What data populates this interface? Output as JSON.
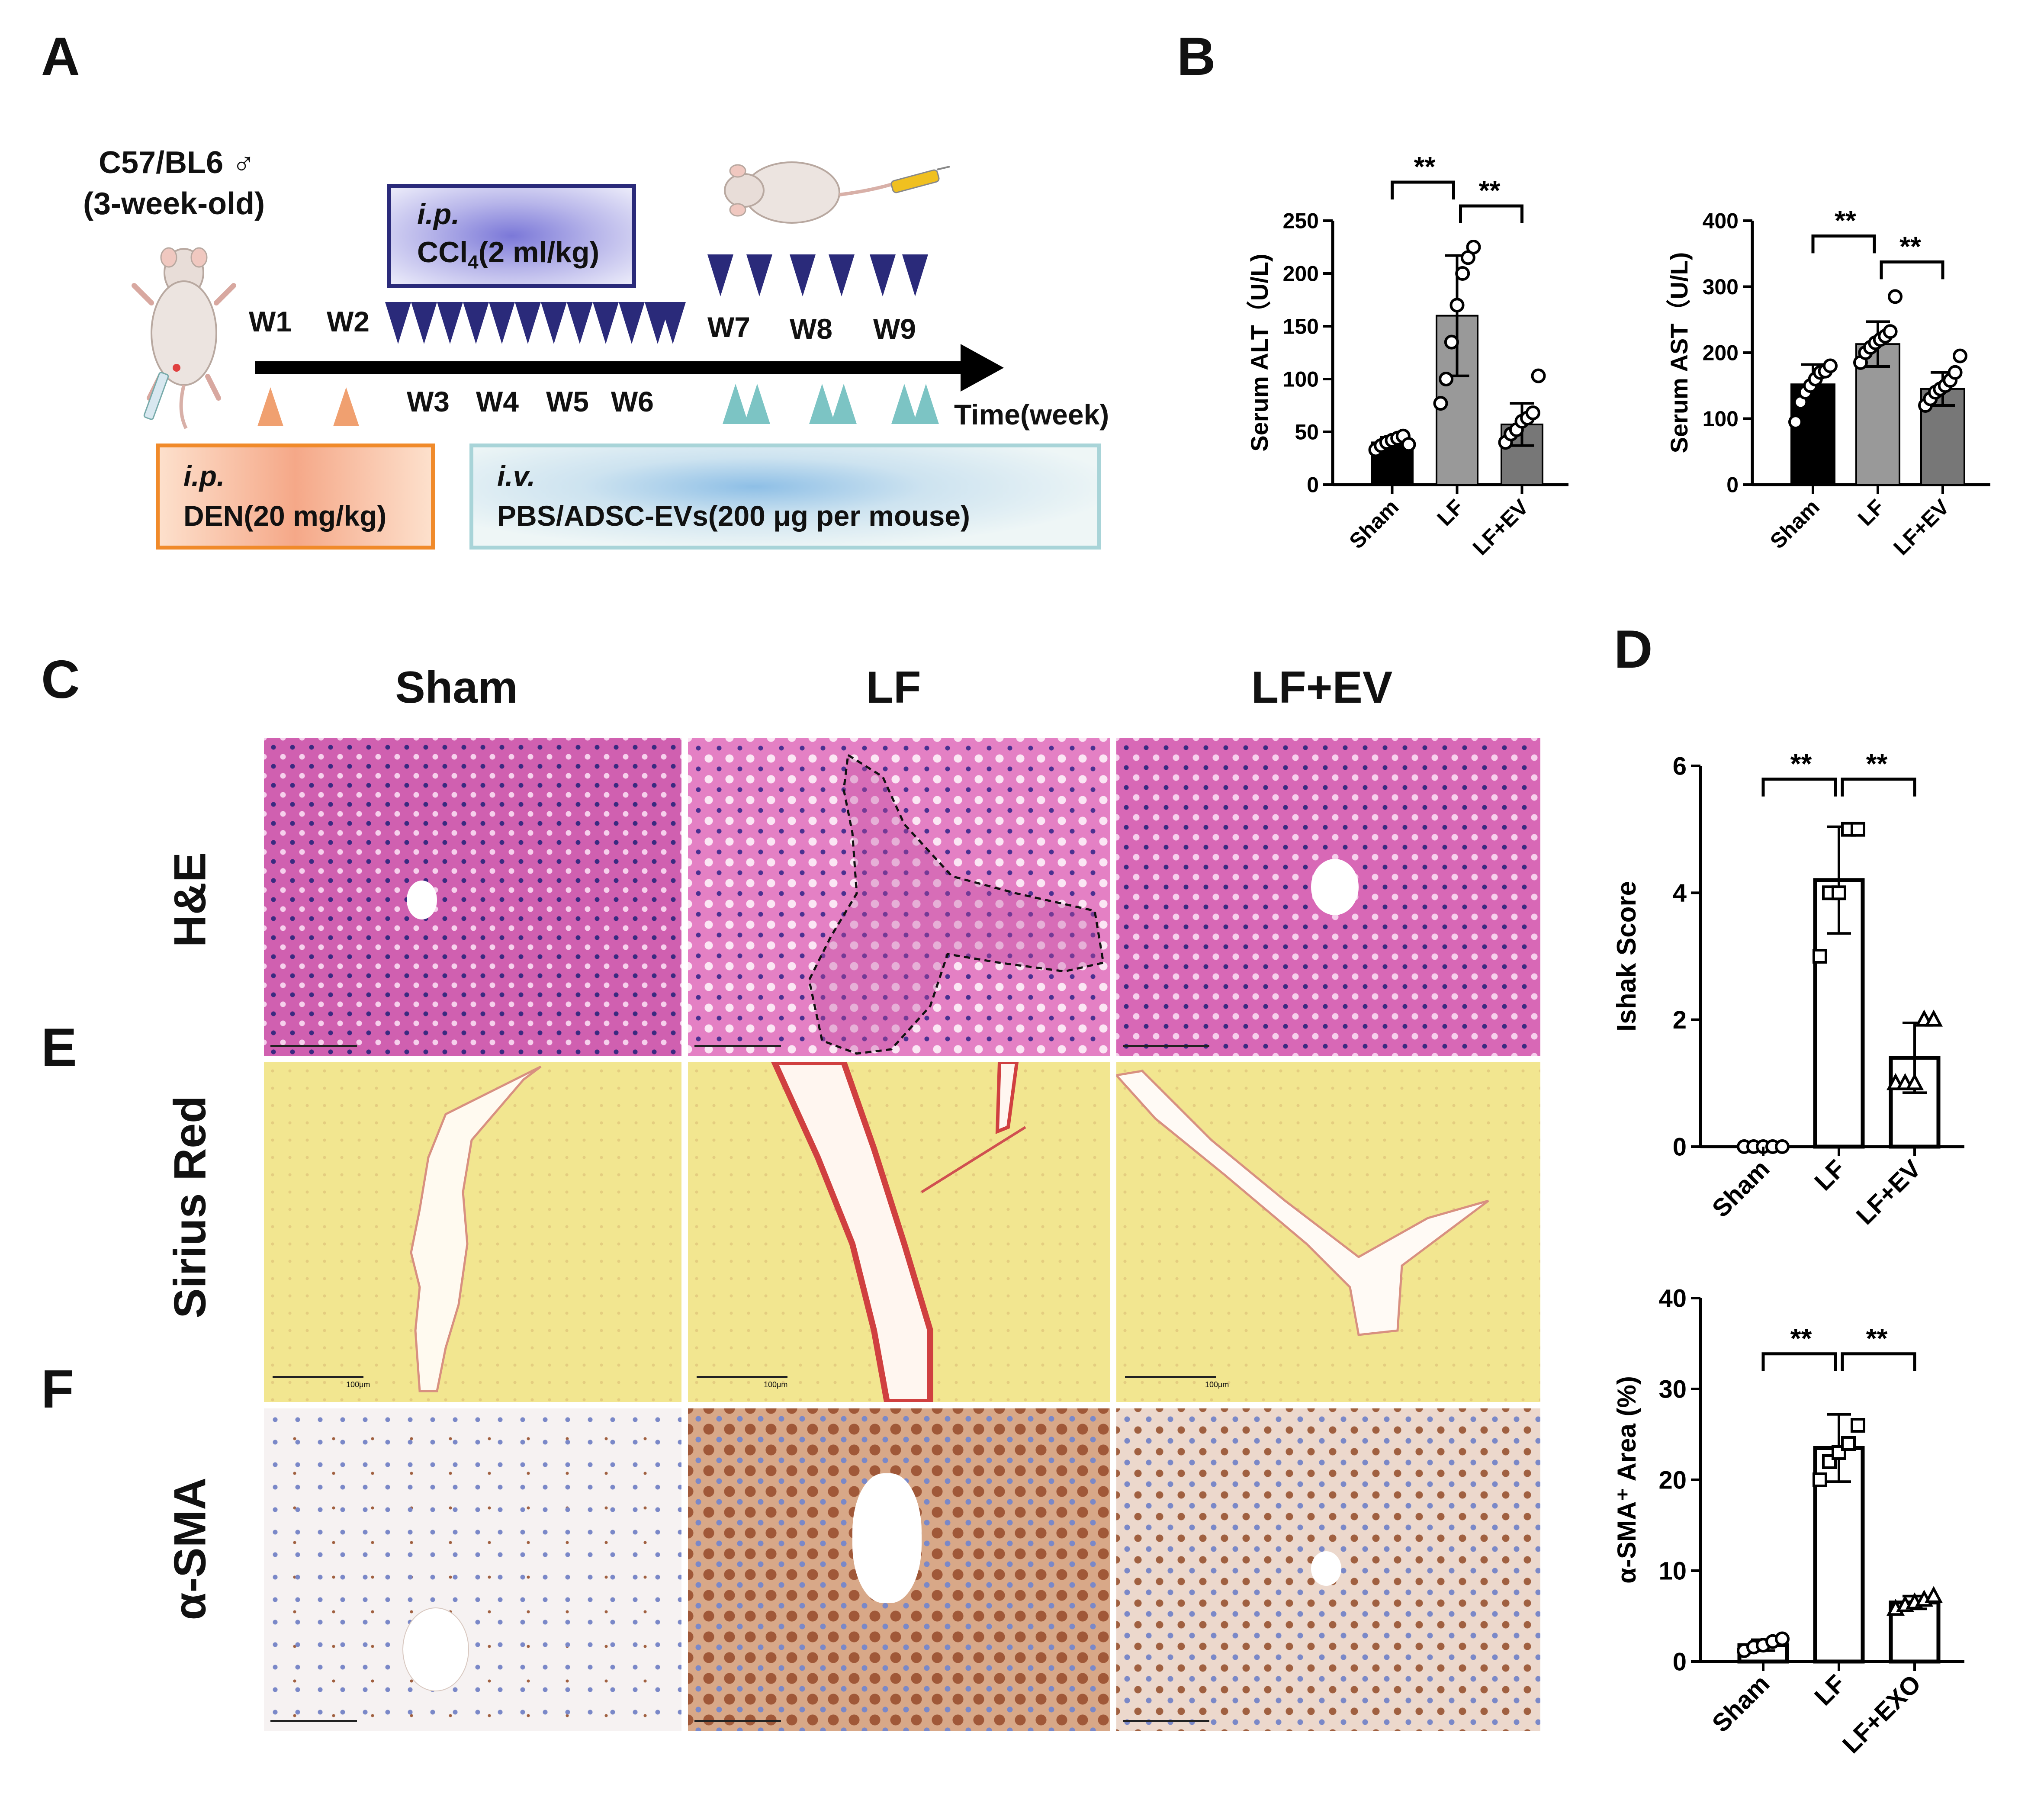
{
  "panels": {
    "A": "A",
    "B": "B",
    "C": "C",
    "D": "D",
    "E": "E",
    "F": "F"
  },
  "timeline": {
    "mouse_strain": "C57/BL6 ♂",
    "mouse_age": "(3-week-old)",
    "weeks": [
      "W1",
      "W2",
      "W3",
      "W4",
      "W5",
      "W6",
      "W7",
      "W8",
      "W9"
    ],
    "axis_label": "Time(week)",
    "ccl4_route": "i.p.",
    "ccl4_text": "CCl",
    "ccl4_sub": "4",
    "ccl4_dose": "(2 ml/kg)",
    "den_route": "i.p.",
    "den_text": "DEN(20 mg/kg)",
    "ev_route": "i.v.",
    "ev_text": "PBS/ADSC-EVs(200 μg per mouse)",
    "colors": {
      "navy": "#2a2a7a",
      "orange": "#f0a070",
      "teal": "#7cc4c4",
      "den_border": "#f08a2a",
      "ev_border": "#a8d4d8"
    }
  },
  "histology": {
    "columns": [
      "Sham",
      "LF",
      "LF+EV"
    ],
    "rows": [
      "H&E",
      "Sirius Red",
      "α-SMA"
    ],
    "scale_bar": "100μm"
  },
  "chart_data": [
    {
      "id": "alt",
      "type": "bar",
      "ylabel": "Serum ALT（U/L)",
      "categories": [
        "Sham",
        "LF",
        "LF+EV"
      ],
      "values": [
        40,
        160,
        57
      ],
      "errors": [
        5,
        57,
        20
      ],
      "points": [
        [
          33,
          37,
          40,
          42,
          44,
          46,
          38
        ],
        [
          77,
          100,
          135,
          170,
          200,
          215,
          225
        ],
        [
          40,
          48,
          52,
          60,
          63,
          68,
          103
        ]
      ],
      "bar_colors": [
        "#000000",
        "#999999",
        "#777777"
      ],
      "ylim": [
        0,
        250
      ],
      "yticks": [
        0,
        50,
        100,
        150,
        200,
        250
      ],
      "significance": [
        {
          "from": 0,
          "to": 1,
          "label": "**"
        },
        {
          "from": 1,
          "to": 2,
          "label": "**"
        }
      ]
    },
    {
      "id": "ast",
      "type": "bar",
      "ylabel": "Serum AST（U/L)",
      "categories": [
        "Sham",
        "LF",
        "LF+EV"
      ],
      "values": [
        152,
        213,
        145
      ],
      "errors": [
        30,
        34,
        25
      ],
      "points": [
        [
          95,
          125,
          140,
          150,
          160,
          170,
          172,
          180
        ],
        [
          185,
          200,
          208,
          215,
          220,
          225,
          232,
          285
        ],
        [
          120,
          130,
          140,
          145,
          150,
          158,
          170,
          195
        ]
      ],
      "bar_colors": [
        "#000000",
        "#999999",
        "#777777"
      ],
      "ylim": [
        0,
        400
      ],
      "yticks": [
        0,
        100,
        200,
        300,
        400
      ],
      "significance": [
        {
          "from": 0,
          "to": 1,
          "label": "**"
        },
        {
          "from": 1,
          "to": 2,
          "label": "**"
        }
      ]
    },
    {
      "id": "ishak",
      "type": "bar",
      "ylabel": "Ishak Score",
      "categories": [
        "Sham",
        "LF",
        "LF+EV"
      ],
      "values": [
        0,
        4.2,
        1.4
      ],
      "errors": [
        0,
        0.84,
        0.55
      ],
      "points": [
        [
          0,
          0,
          0,
          0,
          0
        ],
        [
          3,
          4,
          4,
          5,
          5
        ],
        [
          1,
          1,
          1,
          2,
          2
        ]
      ],
      "markers": [
        "circle",
        "square",
        "triangle"
      ],
      "bar_colors": [
        "#ffffff",
        "#ffffff",
        "#ffffff"
      ],
      "ylim": [
        0,
        6
      ],
      "yticks": [
        0,
        2,
        4,
        6
      ],
      "significance": [
        {
          "from": 0,
          "to": 1,
          "label": "**"
        },
        {
          "from": 1,
          "to": 2,
          "label": "**"
        }
      ]
    },
    {
      "id": "asma",
      "type": "bar",
      "ylabel": "α-SMA⁺ Area (%)",
      "categories": [
        "Sham",
        "LF",
        "LF+EXO"
      ],
      "values": [
        1.8,
        23.5,
        6.5
      ],
      "errors": [
        0.6,
        3.7,
        0.7
      ],
      "points": [
        [
          1.2,
          1.6,
          1.8,
          2.2,
          2.5
        ],
        [
          20,
          22,
          23,
          24,
          26
        ],
        [
          5.8,
          6.2,
          6.5,
          6.8,
          7.2
        ]
      ],
      "markers": [
        "circle",
        "square",
        "triangle"
      ],
      "bar_colors": [
        "#ffffff",
        "#ffffff",
        "#ffffff"
      ],
      "ylim": [
        0,
        40
      ],
      "yticks": [
        0,
        10,
        20,
        30,
        40
      ],
      "significance": [
        {
          "from": 0,
          "to": 1,
          "label": "**"
        },
        {
          "from": 1,
          "to": 2,
          "label": "**"
        }
      ]
    }
  ]
}
